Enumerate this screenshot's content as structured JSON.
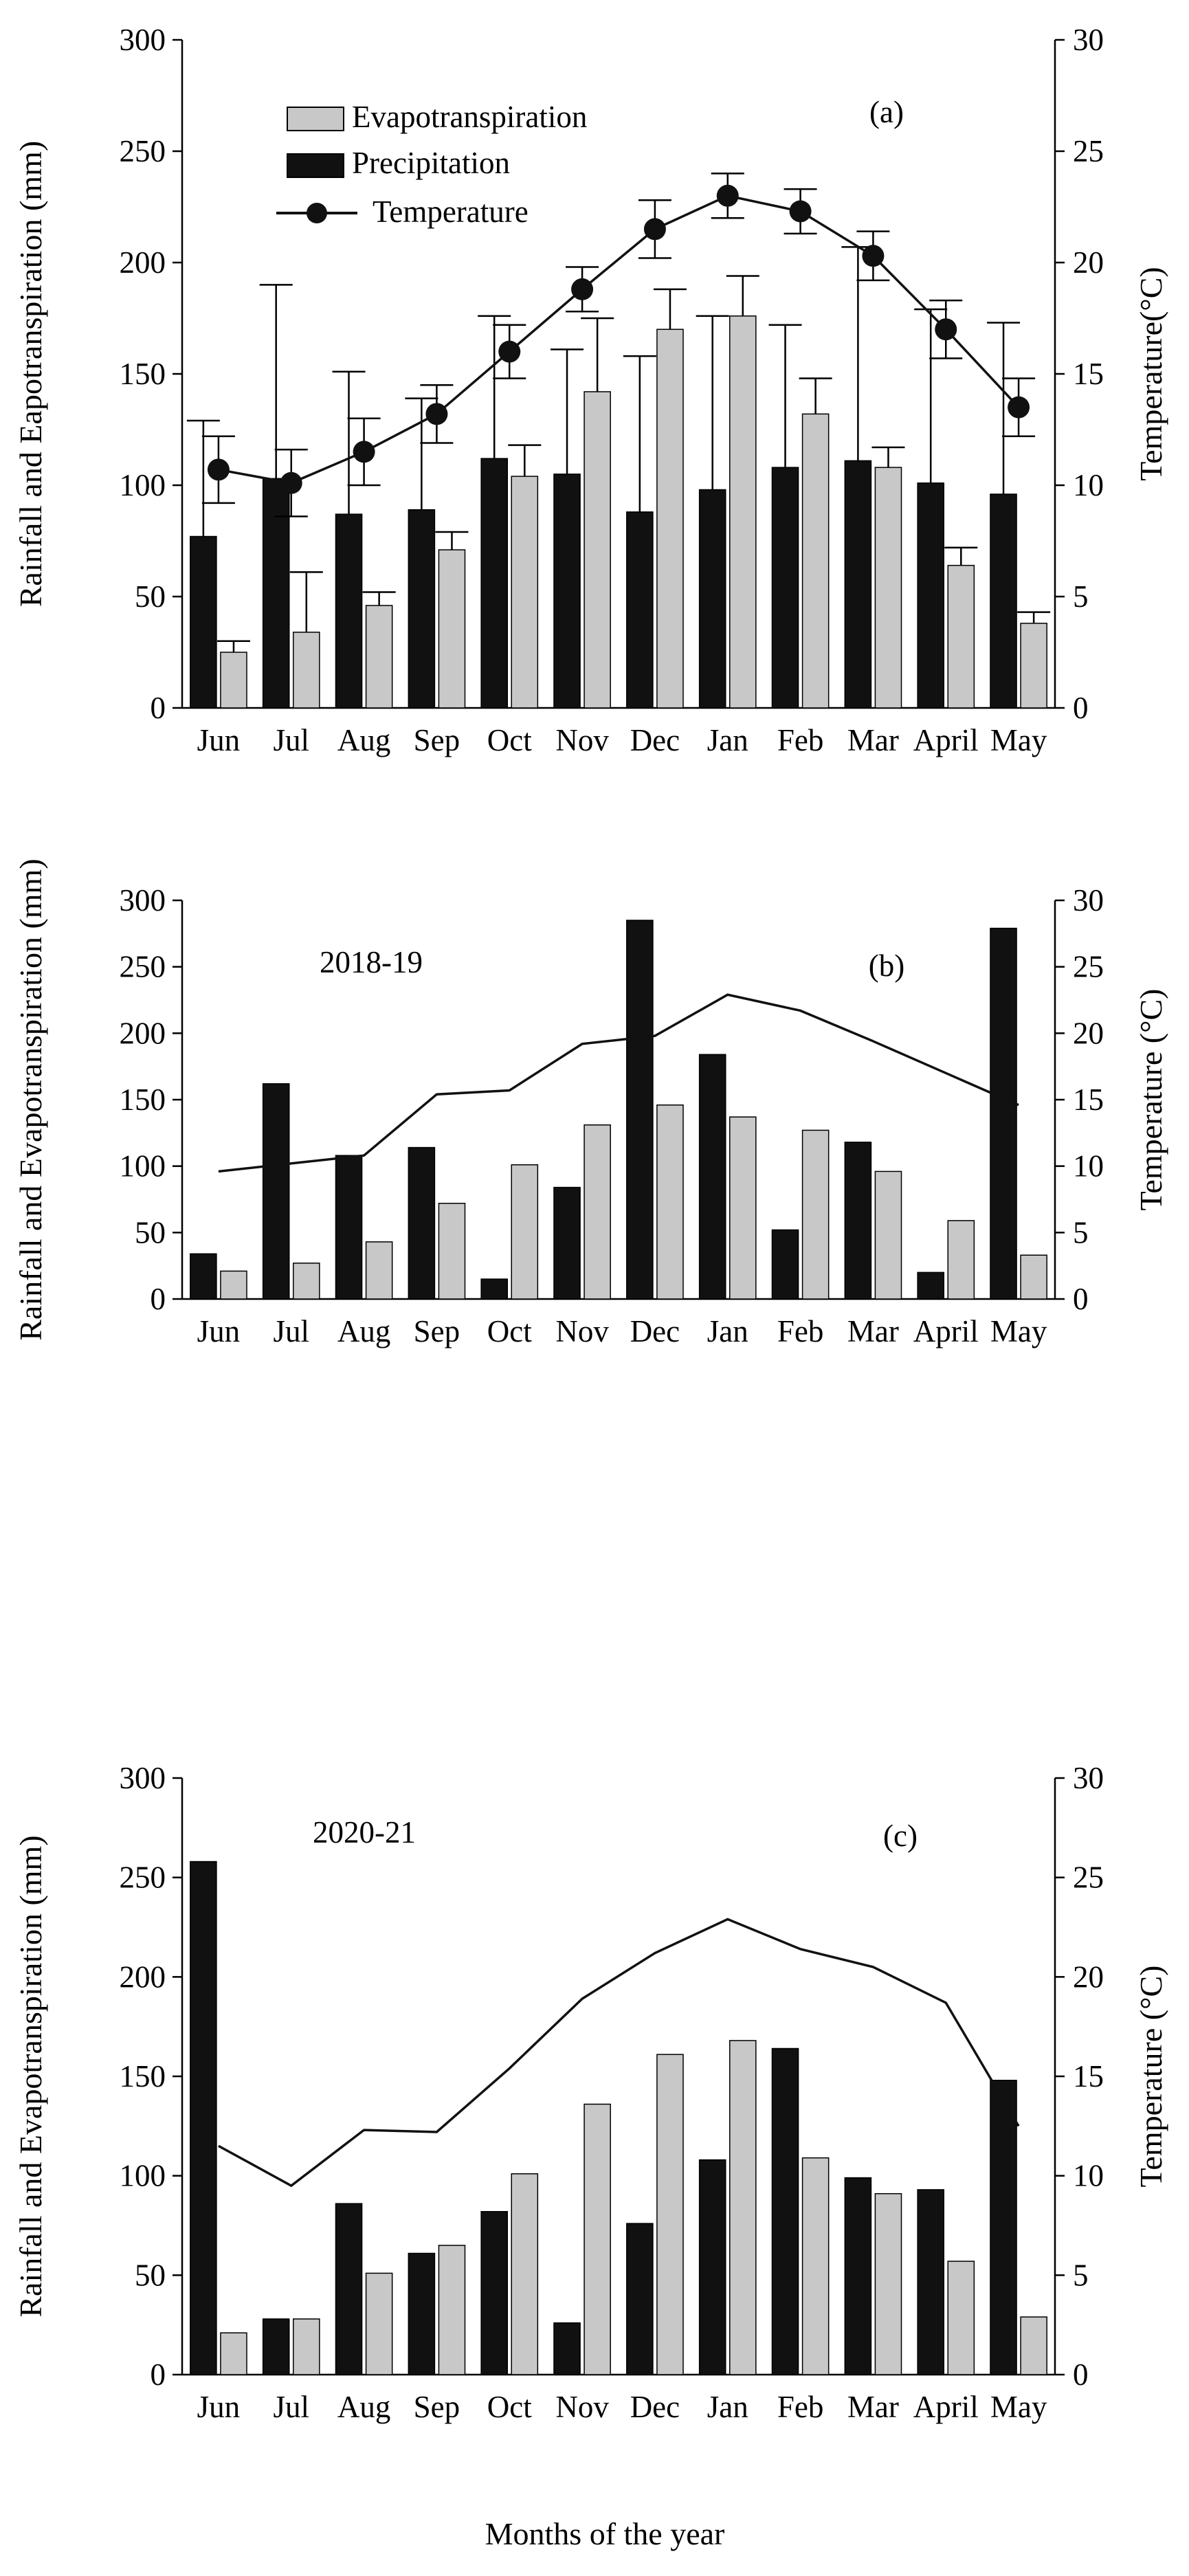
{
  "chart_data": [
    {
      "type": "bar",
      "panel_label": "(a)",
      "annotation": "",
      "categories": [
        "Jun",
        "Jul",
        "Aug",
        "Sep",
        "Oct",
        "Nov",
        "Dec",
        "Jan",
        "Feb",
        "Mar",
        "April",
        "May"
      ],
      "series": [
        {
          "name": "Precipitation",
          "type": "bar",
          "axis": "left",
          "values": [
            77,
            103,
            87,
            89,
            112,
            105,
            88,
            98,
            108,
            111,
            101,
            96
          ],
          "error": [
            52,
            87,
            64,
            50,
            64,
            56,
            70,
            78,
            64,
            96,
            78,
            77
          ]
        },
        {
          "name": "Evapotranspiration",
          "type": "bar",
          "axis": "left",
          "values": [
            25,
            34,
            46,
            71,
            104,
            142,
            170,
            176,
            132,
            108,
            64,
            38
          ],
          "error": [
            5,
            27,
            6,
            8,
            14,
            33,
            18,
            18,
            16,
            9,
            8,
            5
          ]
        },
        {
          "name": "Temperature",
          "type": "line",
          "axis": "right",
          "markers": true,
          "values": [
            10.7,
            10.1,
            11.5,
            13.2,
            16.0,
            18.8,
            21.5,
            23.0,
            22.3,
            20.3,
            17.0,
            13.5
          ],
          "error": [
            1.5,
            1.5,
            1.5,
            1.3,
            1.2,
            1.0,
            1.3,
            1.0,
            1.0,
            1.1,
            1.3,
            1.3
          ]
        }
      ],
      "legend": [
        "Evapotranspiration",
        "Precipitation",
        "Temperature"
      ],
      "ylabel": "Rainfall and Eapotranspiration (mm)",
      "y2label": "Temperature(°C)",
      "ylim": [
        0,
        300
      ],
      "y2lim": [
        0,
        30
      ],
      "yticks": [
        0,
        50,
        100,
        150,
        200,
        250,
        300
      ],
      "y2ticks": [
        0,
        5,
        10,
        15,
        20,
        25,
        30
      ],
      "xlabel": ""
    },
    {
      "type": "bar",
      "panel_label": "(b)",
      "annotation": "2018-19",
      "categories": [
        "Jun",
        "Jul",
        "Aug",
        "Sep",
        "Oct",
        "Nov",
        "Dec",
        "Jan",
        "Feb",
        "Mar",
        "April",
        "May"
      ],
      "series": [
        {
          "name": "Precipitation",
          "type": "bar",
          "axis": "left",
          "values": [
            34,
            162,
            108,
            114,
            15,
            84,
            285,
            184,
            52,
            118,
            20,
            279
          ]
        },
        {
          "name": "Evapotranspiration",
          "type": "bar",
          "axis": "left",
          "values": [
            21,
            27,
            43,
            72,
            101,
            131,
            146,
            137,
            127,
            96,
            59,
            33
          ]
        },
        {
          "name": "Temperature",
          "type": "line",
          "axis": "right",
          "markers": false,
          "values": [
            9.6,
            10.2,
            10.8,
            15.4,
            15.7,
            19.2,
            19.8,
            22.9,
            21.7,
            19.4,
            17.0,
            14.6
          ]
        }
      ],
      "ylabel": "Rainfall and Evapotranspiration (mm)",
      "y2label": "Temperature (°C)",
      "ylim": [
        0,
        300
      ],
      "y2lim": [
        0,
        30
      ],
      "yticks": [
        0,
        50,
        100,
        150,
        200,
        250,
        300
      ],
      "y2ticks": [
        0,
        5,
        10,
        15,
        20,
        25,
        30
      ],
      "xlabel": ""
    },
    {
      "type": "bar",
      "panel_label": "(c)",
      "annotation": "2020-21",
      "categories": [
        "Jun",
        "Jul",
        "Aug",
        "Sep",
        "Oct",
        "Nov",
        "Dec",
        "Jan",
        "Feb",
        "Mar",
        "April",
        "May"
      ],
      "series": [
        {
          "name": "Precipitation",
          "type": "bar",
          "axis": "left",
          "values": [
            258,
            28,
            86,
            61,
            82,
            26,
            76,
            108,
            164,
            99,
            93,
            148
          ]
        },
        {
          "name": "Evapotranspiration",
          "type": "bar",
          "axis": "left",
          "values": [
            21,
            28,
            51,
            65,
            101,
            136,
            161,
            168,
            109,
            91,
            57,
            29
          ]
        },
        {
          "name": "Temperature",
          "type": "line",
          "axis": "right",
          "markers": false,
          "values": [
            11.5,
            9.5,
            12.3,
            12.2,
            15.4,
            18.9,
            21.2,
            22.9,
            21.4,
            20.5,
            18.7,
            12.5
          ]
        }
      ],
      "ylabel": "Rainfall and Evapotranspiration (mm)",
      "y2label": "Temperature (°C)",
      "ylim": [
        0,
        300
      ],
      "y2lim": [
        0,
        30
      ],
      "yticks": [
        0,
        50,
        100,
        150,
        200,
        250,
        300
      ],
      "y2ticks": [
        0,
        5,
        10,
        15,
        20,
        25,
        30
      ],
      "xlabel": "Months of the year"
    }
  ],
  "colors": {
    "precipitation": "#111111",
    "evapotranspiration": "#c8c8c8",
    "temperature": "#111111",
    "axis": "#000000"
  }
}
